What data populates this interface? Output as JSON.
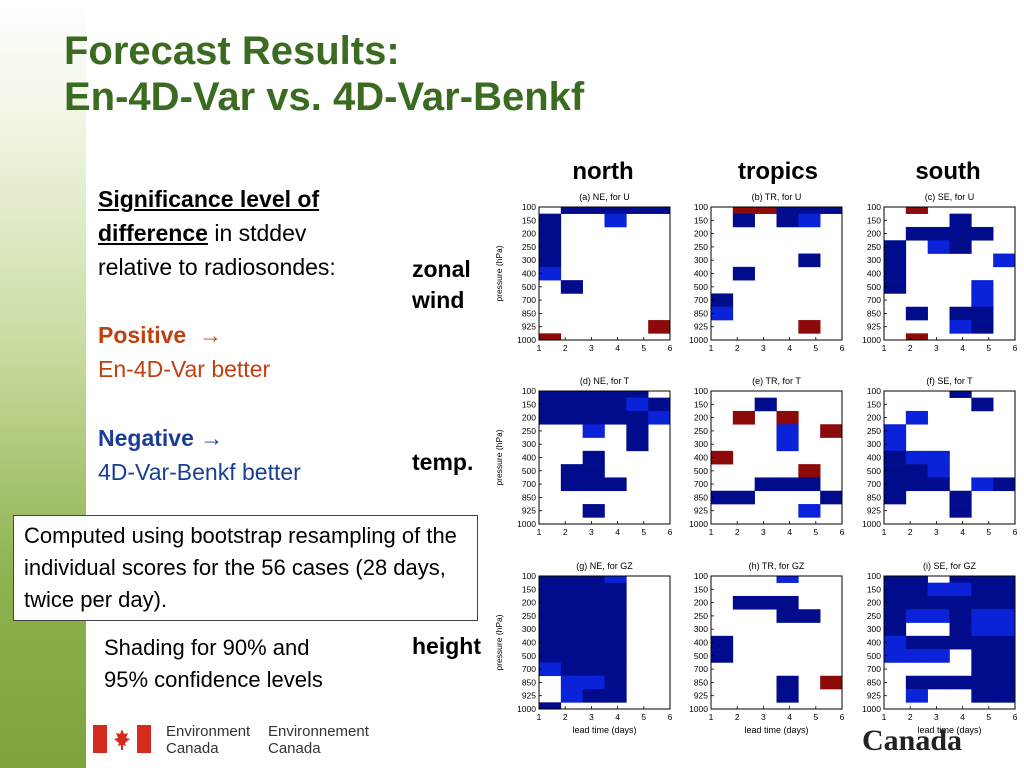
{
  "slide": {
    "title_line1": "Forecast Results:",
    "title_line2": "En-4D-Var vs. 4D-Var-Benkf",
    "sig_u1": "Significance level of",
    "sig_u2": "difference",
    "sig_rest1": " in stddev",
    "sig_rest2": "relative to radiosondes:",
    "positive_label": "Positive",
    "positive_arrow": "→",
    "positive_desc": "En-4D-Var better",
    "negative_label": "Negative",
    "negative_arrow": "→",
    "negative_desc": "4D-Var-Benkf better",
    "box_note": "Computed using bootstrap resampling of the individual scores for the 56 cases (28 days, twice per day).",
    "shading_note_1": "Shading for 90% and",
    "shading_note_2": "95% confidence levels",
    "col_labels": [
      "north",
      "tropics",
      "south"
    ],
    "row_label_zonal_1": "zonal",
    "row_label_zonal_2": "wind",
    "row_label_temp": "temp.",
    "row_label_height": "height",
    "footer_en_1": "Environment",
    "footer_en_2": "Canada",
    "footer_fr_1": "Environnement",
    "footer_fr_2": "Canada",
    "wordmark": "Canada"
  },
  "colors": {
    "title": "#3a6b21",
    "positive_text": "#c0400f",
    "negative_text": "#1a3d96",
    "neg95": "#000c8c",
    "neg90": "#0a22d8",
    "pos95": "#8c0a0a",
    "pos90": "#cc1a1a"
  },
  "chart_data": {
    "type": "heatmap",
    "ylabel": "pressure (hPa)",
    "xlabel": "lead time (days)",
    "x_ticks": [
      "1",
      "2",
      "3",
      "4",
      "5",
      "6"
    ],
    "y_levels": [
      "100",
      "150",
      "200",
      "250",
      "300",
      "400",
      "500",
      "700",
      "850",
      "925",
      "1000"
    ],
    "legend": "significance: -2 = 4D-Var-Benkf better (95%), -1 = 4D-Var-Benkf better (90%), 1 = En-4D-Var better (90%), 2 = En-4D-Var better (95%), 0 = not significant",
    "panels": [
      {
        "title": "(a) NE, for U",
        "grid": [
          [
            0,
            -2,
            -2,
            -2,
            -2,
            -2
          ],
          [
            -2,
            0,
            0,
            -1,
            0,
            0
          ],
          [
            -2,
            0,
            0,
            0,
            0,
            0
          ],
          [
            -2,
            0,
            0,
            0,
            0,
            0
          ],
          [
            -2,
            0,
            0,
            0,
            0,
            0
          ],
          [
            -1,
            0,
            0,
            0,
            0,
            0
          ],
          [
            0,
            -2,
            0,
            0,
            0,
            0
          ],
          [
            0,
            0,
            0,
            0,
            0,
            0
          ],
          [
            0,
            0,
            0,
            0,
            0,
            0
          ],
          [
            0,
            0,
            0,
            0,
            0,
            2
          ],
          [
            2,
            0,
            0,
            0,
            0,
            0
          ]
        ]
      },
      {
        "title": "(b) TR, for U",
        "grid": [
          [
            0,
            2,
            2,
            -2,
            -2,
            -2
          ],
          [
            0,
            -2,
            0,
            -2,
            -1,
            0
          ],
          [
            0,
            0,
            0,
            0,
            0,
            0
          ],
          [
            0,
            0,
            0,
            0,
            0,
            0
          ],
          [
            0,
            0,
            0,
            0,
            -2,
            0
          ],
          [
            0,
            -2,
            0,
            0,
            0,
            0
          ],
          [
            0,
            0,
            0,
            0,
            0,
            0
          ],
          [
            -2,
            0,
            0,
            0,
            0,
            0
          ],
          [
            -1,
            0,
            0,
            0,
            0,
            0
          ],
          [
            0,
            0,
            0,
            0,
            2,
            0
          ],
          [
            0,
            0,
            0,
            0,
            0,
            0
          ]
        ]
      },
      {
        "title": "(c) SE, for U",
        "grid": [
          [
            0,
            2,
            0,
            0,
            0,
            0
          ],
          [
            0,
            0,
            0,
            -2,
            0,
            0
          ],
          [
            0,
            -2,
            -2,
            -2,
            -2,
            0
          ],
          [
            -2,
            0,
            -1,
            -2,
            0,
            0
          ],
          [
            -2,
            0,
            0,
            0,
            0,
            -1
          ],
          [
            -2,
            0,
            0,
            0,
            0,
            0
          ],
          [
            -2,
            0,
            0,
            0,
            -1,
            0
          ],
          [
            0,
            0,
            0,
            0,
            -1,
            0
          ],
          [
            0,
            -2,
            0,
            -2,
            -2,
            0
          ],
          [
            0,
            0,
            0,
            -1,
            -2,
            0
          ],
          [
            0,
            2,
            0,
            0,
            0,
            0
          ]
        ]
      },
      {
        "title": "(d) NE, for T",
        "grid": [
          [
            -2,
            -2,
            -2,
            -2,
            -2,
            0
          ],
          [
            -2,
            -2,
            -2,
            -2,
            -1,
            -2
          ],
          [
            -2,
            -2,
            -2,
            -2,
            -2,
            -1
          ],
          [
            0,
            0,
            -1,
            0,
            -2,
            0
          ],
          [
            0,
            0,
            0,
            0,
            -2,
            0
          ],
          [
            0,
            0,
            -2,
            0,
            0,
            0
          ],
          [
            0,
            -2,
            -2,
            0,
            0,
            0
          ],
          [
            0,
            -2,
            -2,
            -2,
            0,
            0
          ],
          [
            0,
            0,
            0,
            0,
            0,
            0
          ],
          [
            0,
            0,
            -2,
            0,
            0,
            0
          ],
          [
            0,
            0,
            0,
            0,
            0,
            0
          ]
        ]
      },
      {
        "title": "(e) TR, for T",
        "grid": [
          [
            0,
            0,
            0,
            0,
            0,
            0
          ],
          [
            0,
            0,
            -2,
            0,
            0,
            0
          ],
          [
            0,
            2,
            0,
            2,
            0,
            0
          ],
          [
            0,
            0,
            0,
            -1,
            0,
            2
          ],
          [
            0,
            0,
            0,
            -1,
            0,
            0
          ],
          [
            2,
            0,
            0,
            0,
            0,
            0
          ],
          [
            0,
            0,
            0,
            0,
            2,
            0
          ],
          [
            0,
            0,
            -2,
            -2,
            -2,
            0
          ],
          [
            -2,
            -2,
            0,
            0,
            0,
            -2
          ],
          [
            0,
            0,
            0,
            0,
            -1,
            0
          ],
          [
            0,
            0,
            0,
            0,
            0,
            0
          ]
        ]
      },
      {
        "title": "(f) SE, for T",
        "grid": [
          [
            0,
            0,
            0,
            -2,
            0,
            0
          ],
          [
            0,
            0,
            0,
            0,
            -2,
            0
          ],
          [
            0,
            -1,
            0,
            0,
            0,
            0
          ],
          [
            -1,
            0,
            0,
            0,
            0,
            0
          ],
          [
            -1,
            0,
            0,
            0,
            0,
            0
          ],
          [
            -2,
            -1,
            -1,
            0,
            0,
            0
          ],
          [
            -2,
            -2,
            -1,
            0,
            0,
            0
          ],
          [
            -2,
            -2,
            -2,
            0,
            -1,
            -2
          ],
          [
            -2,
            0,
            0,
            -2,
            0,
            0
          ],
          [
            0,
            0,
            0,
            -2,
            0,
            0
          ],
          [
            0,
            0,
            0,
            0,
            0,
            0
          ]
        ]
      },
      {
        "title": "(g) NE, for GZ",
        "grid": [
          [
            -2,
            -2,
            -2,
            -1,
            0,
            0
          ],
          [
            -2,
            -2,
            -2,
            -2,
            0,
            0
          ],
          [
            -2,
            -2,
            -2,
            -2,
            0,
            0
          ],
          [
            -2,
            -2,
            -2,
            -2,
            0,
            0
          ],
          [
            -2,
            -2,
            -2,
            -2,
            0,
            0
          ],
          [
            -2,
            -2,
            -2,
            -2,
            0,
            0
          ],
          [
            -2,
            -2,
            -2,
            -2,
            0,
            0
          ],
          [
            -1,
            -2,
            -2,
            -2,
            0,
            0
          ],
          [
            0,
            -1,
            -1,
            -2,
            0,
            0
          ],
          [
            0,
            -1,
            -2,
            -2,
            0,
            0
          ],
          [
            -2,
            0,
            0,
            0,
            0,
            0
          ]
        ]
      },
      {
        "title": "(h) TR, for GZ",
        "grid": [
          [
            0,
            0,
            0,
            -1,
            0,
            0
          ],
          [
            0,
            0,
            0,
            0,
            0,
            0
          ],
          [
            0,
            -2,
            -2,
            -2,
            0,
            0
          ],
          [
            0,
            0,
            0,
            -2,
            -2,
            0
          ],
          [
            0,
            0,
            0,
            0,
            0,
            0
          ],
          [
            -2,
            0,
            0,
            0,
            0,
            0
          ],
          [
            -2,
            0,
            0,
            0,
            0,
            0
          ],
          [
            0,
            0,
            0,
            0,
            0,
            0
          ],
          [
            0,
            0,
            0,
            -2,
            0,
            2
          ],
          [
            0,
            0,
            0,
            -2,
            0,
            0
          ],
          [
            0,
            0,
            0,
            0,
            0,
            0
          ]
        ]
      },
      {
        "title": "(i) SE, for GZ",
        "grid": [
          [
            -2,
            -2,
            0,
            -2,
            -2,
            -2
          ],
          [
            -2,
            -2,
            -1,
            -1,
            -2,
            -2
          ],
          [
            -2,
            -2,
            -2,
            -2,
            -2,
            -2
          ],
          [
            -2,
            -1,
            -1,
            -2,
            -1,
            -1
          ],
          [
            -2,
            0,
            0,
            -2,
            -1,
            -1
          ],
          [
            -1,
            -2,
            -2,
            -2,
            -2,
            -2
          ],
          [
            -1,
            -1,
            -1,
            0,
            -2,
            -2
          ],
          [
            0,
            0,
            0,
            0,
            -2,
            -2
          ],
          [
            0,
            -2,
            -2,
            -2,
            -2,
            -2
          ],
          [
            0,
            -1,
            0,
            0,
            -2,
            -2
          ],
          [
            0,
            0,
            0,
            0,
            0,
            0
          ]
        ]
      }
    ]
  }
}
